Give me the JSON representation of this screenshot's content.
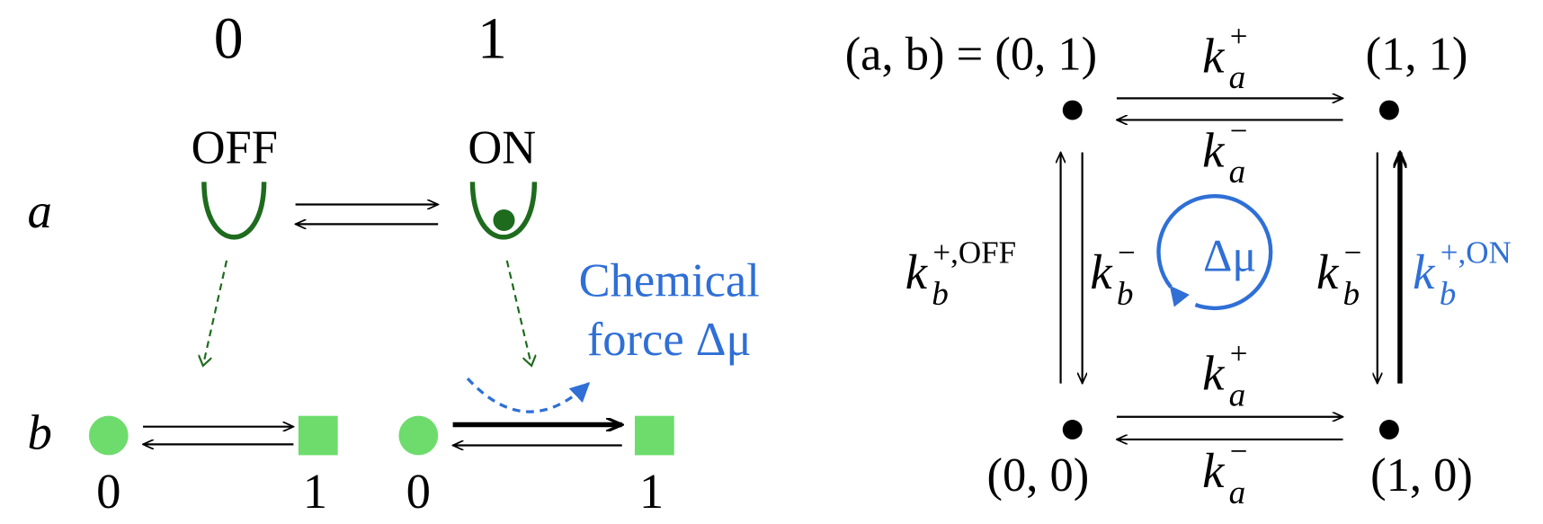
{
  "left": {
    "columns": [
      "0",
      "1"
    ],
    "states": [
      "OFF",
      "ON"
    ],
    "rows": [
      "a",
      "b"
    ],
    "annotation": [
      "Chemical",
      "force Δμ"
    ],
    "b_labels": [
      "0",
      "1",
      "0",
      "1"
    ]
  },
  "right": {
    "corners": {
      "top_left": "(a, b) = (0, 1)",
      "top_right": "(1, 1)",
      "bottom_left": "(0, 0)",
      "bottom_right": "(1, 0)"
    },
    "rates": [
      {
        "k": "k",
        "sub": "a",
        "sup": "+"
      },
      {
        "k": "k",
        "sub": "a",
        "sup": "−"
      },
      {
        "k": "k",
        "sub": "b",
        "sup": "+,OFF"
      },
      {
        "k": "k",
        "sub": "b",
        "sup": "−"
      },
      {
        "k": "k",
        "sub": "b",
        "sup": "−"
      },
      {
        "k": "k",
        "sub": "b",
        "sup": "+,ON"
      },
      {
        "k": "k",
        "sub": "a",
        "sup": "+"
      },
      {
        "k": "k",
        "sub": "a",
        "sup": "−"
      }
    ],
    "cycle": "Δμ"
  }
}
